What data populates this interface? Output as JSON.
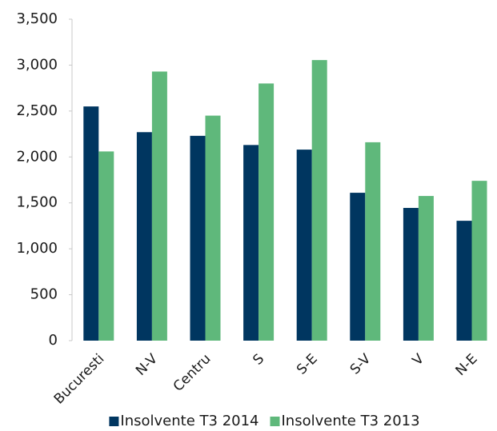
{
  "chart_data": {
    "type": "bar",
    "categories": [
      "Bucuresti",
      "N-V",
      "Centru",
      "S",
      "S-E",
      "S-V",
      "V",
      "N-E"
    ],
    "series": [
      {
        "name": "Insolvente T3 2014",
        "color": "#003660",
        "values": [
          2550,
          2270,
          2230,
          2130,
          2080,
          1610,
          1445,
          1305
        ]
      },
      {
        "name": "Insolvente T3 2013",
        "color": "#5fb87b",
        "values": [
          2060,
          2930,
          2450,
          2800,
          3055,
          2160,
          1575,
          1740
        ]
      }
    ],
    "ylim": [
      0,
      3500
    ],
    "yticks": [
      0,
      500,
      {
        "value": 1000,
        "label": "1,000"
      },
      {
        "value": 1500,
        "label": "1,500"
      },
      {
        "value": 2000,
        "label": "2,000"
      },
      {
        "value": 2500,
        "label": "2,500"
      },
      {
        "value": 3000,
        "label": "3,000"
      },
      {
        "value": 3500,
        "label": "3,500"
      }
    ],
    "grid": false,
    "legend": "bottom"
  }
}
